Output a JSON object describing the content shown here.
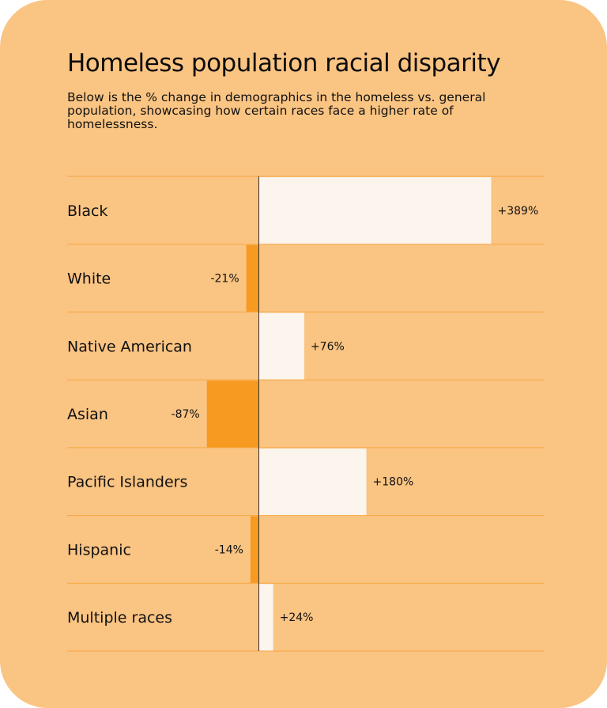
{
  "title": "Homeless population racial disparity",
  "subtitle": "Below is the % change in demographics in the homeless vs. general population, showcasing how certain races face a higher rate of homelessness.",
  "colors": {
    "background": "#FAC483",
    "positive": "#FBF5EE",
    "negative": "#F79A21",
    "gridline": "#F7A640",
    "axis": "#333333"
  },
  "chart_data": {
    "type": "bar",
    "orientation": "horizontal",
    "categories": [
      "Black",
      "White",
      "Native American",
      "Asian",
      "Pacific Islanders",
      "Hispanic",
      "Multiple races"
    ],
    "values": [
      389,
      -21,
      76,
      -87,
      180,
      -14,
      24
    ],
    "value_labels": [
      "+389%",
      "-21%",
      "+76%",
      "-87%",
      "+180%",
      "-14%",
      "+24%"
    ],
    "unit": "%"
  }
}
